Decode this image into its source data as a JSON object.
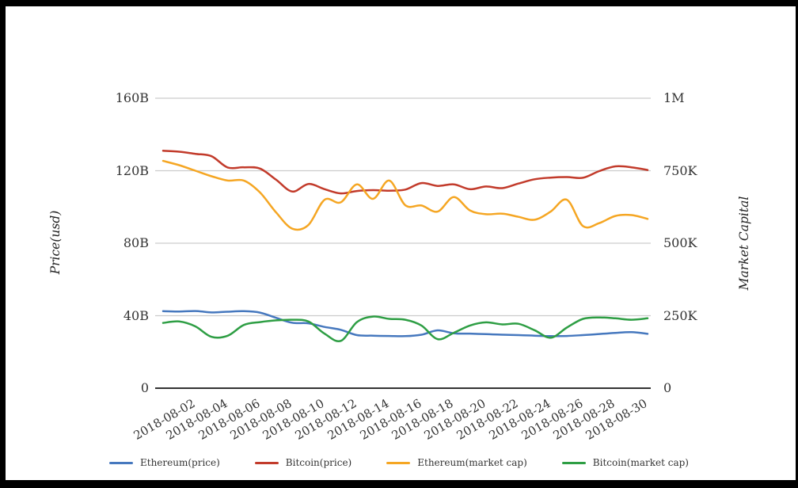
{
  "chart_data": {
    "type": "line",
    "title": "",
    "x": [
      "2018-08-01",
      "2018-08-02",
      "2018-08-03",
      "2018-08-04",
      "2018-08-05",
      "2018-08-06",
      "2018-08-07",
      "2018-08-08",
      "2018-08-09",
      "2018-08-10",
      "2018-08-11",
      "2018-08-12",
      "2018-08-13",
      "2018-08-14",
      "2018-08-15",
      "2018-08-16",
      "2018-08-17",
      "2018-08-18",
      "2018-08-19",
      "2018-08-20",
      "2018-08-21",
      "2018-08-22",
      "2018-08-23",
      "2018-08-24",
      "2018-08-25",
      "2018-08-26",
      "2018-08-27",
      "2018-08-28",
      "2018-08-29",
      "2018-08-30",
      "2018-08-31"
    ],
    "x_tick_labels": [
      "2018-08-02",
      "2018-08-04",
      "2018-08-06",
      "2018-08-08",
      "2018-08-10",
      "2018-08-12",
      "2018-08-14",
      "2018-08-16",
      "2018-08-18",
      "2018-08-20",
      "2018-08-22",
      "2018-08-24",
      "2018-08-26",
      "2018-08-28",
      "2018-08-30"
    ],
    "left_axis": {
      "label": "Price(usd)",
      "tick_labels": [
        "0",
        "40B",
        "80B",
        "120B",
        "160B"
      ],
      "tick_values": [
        0,
        40,
        80,
        120,
        160
      ],
      "range": [
        0,
        160
      ],
      "unit": "B"
    },
    "right_axis": {
      "label": "Market Capital",
      "tick_labels": [
        "0",
        "250K",
        "500K",
        "750K",
        "1M"
      ],
      "tick_values": [
        0,
        250,
        500,
        750,
        1000
      ],
      "range": [
        0,
        1000
      ],
      "unit": "K"
    },
    "grid": "horizontal-only",
    "legend_position": "bottom",
    "series": [
      {
        "name": "Ethereum(price)",
        "color": "#4678BE",
        "axis": "left",
        "values": [
          42.5,
          42.3,
          42.6,
          41.8,
          42.2,
          42.5,
          41.7,
          38.8,
          36.1,
          35.8,
          33.8,
          32.2,
          29.3,
          29.0,
          28.8,
          28.7,
          29.5,
          31.9,
          30.3,
          30.1,
          29.8,
          29.5,
          29.3,
          29.0,
          28.7,
          28.8,
          29.3,
          29.9,
          30.5,
          30.9,
          30.0
        ]
      },
      {
        "name": "Bitcoin(price)",
        "color": "#C23B2B",
        "axis": "left",
        "values": [
          131.0,
          130.5,
          129.3,
          128.0,
          121.8,
          121.9,
          121.2,
          115.0,
          108.5,
          112.7,
          109.8,
          107.5,
          108.8,
          109.3,
          109.0,
          109.6,
          113.2,
          111.6,
          112.5,
          109.8,
          111.3,
          110.4,
          112.9,
          115.3,
          116.2,
          116.5,
          116.1,
          119.8,
          122.4,
          121.9,
          120.4
        ]
      },
      {
        "name": "Ethereum(market cap)",
        "color": "#F5A623",
        "axis": "right",
        "values": [
          784,
          769,
          750,
          731,
          716,
          716,
          675,
          606,
          550,
          563,
          650,
          641,
          703,
          653,
          716,
          631,
          630,
          609,
          659,
          613,
          600,
          602,
          591,
          581,
          609,
          650,
          559,
          569,
          594,
          597,
          584
        ]
      },
      {
        "name": "Bitcoin(market cap)",
        "color": "#2E9E44",
        "axis": "right",
        "values": [
          225,
          230,
          213,
          177,
          181,
          218,
          228,
          234,
          236,
          230,
          188,
          163,
          228,
          247,
          239,
          236,
          216,
          169,
          191,
          216,
          227,
          220,
          222,
          200,
          174,
          209,
          239,
          244,
          241,
          236,
          241
        ]
      }
    ],
    "colors": {
      "gridline": "#CCCCCC",
      "axis_line": "#333333",
      "text": "#333333"
    }
  }
}
